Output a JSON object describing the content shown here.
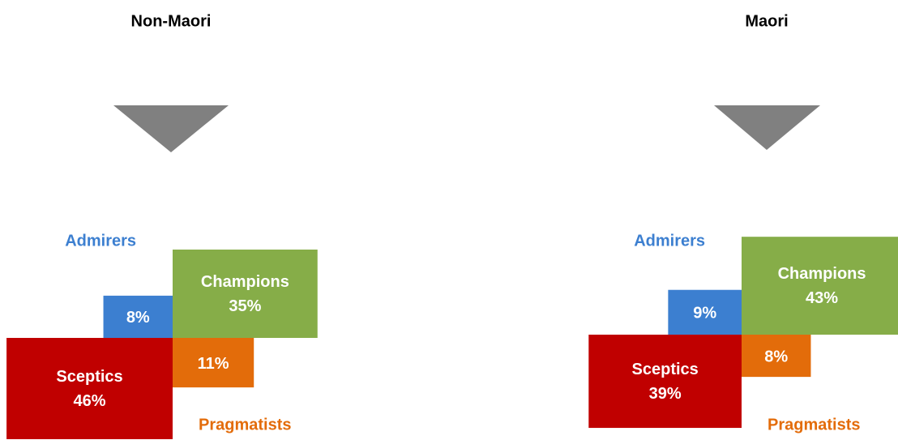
{
  "chart_data": [
    {
      "type": "quadrant-area",
      "title": "Non-Maori",
      "categories": [
        "Admirers",
        "Champions",
        "Sceptics",
        "Pragmatists"
      ],
      "values": [
        8,
        35,
        46,
        11
      ],
      "value_labels": [
        "8%",
        "35%",
        "46%",
        "11%"
      ],
      "colors": [
        "#3c7fd0",
        "#86ad48",
        "#c00000",
        "#e36c0a"
      ]
    },
    {
      "type": "quadrant-area",
      "title": "Maori",
      "categories": [
        "Admirers",
        "Champions",
        "Sceptics",
        "Pragmatists"
      ],
      "values": [
        9,
        43,
        39,
        8
      ],
      "value_labels": [
        "9%",
        "43%",
        "39%",
        "8%"
      ],
      "colors": [
        "#3c7fd0",
        "#86ad48",
        "#c00000",
        "#e36c0a"
      ]
    }
  ]
}
